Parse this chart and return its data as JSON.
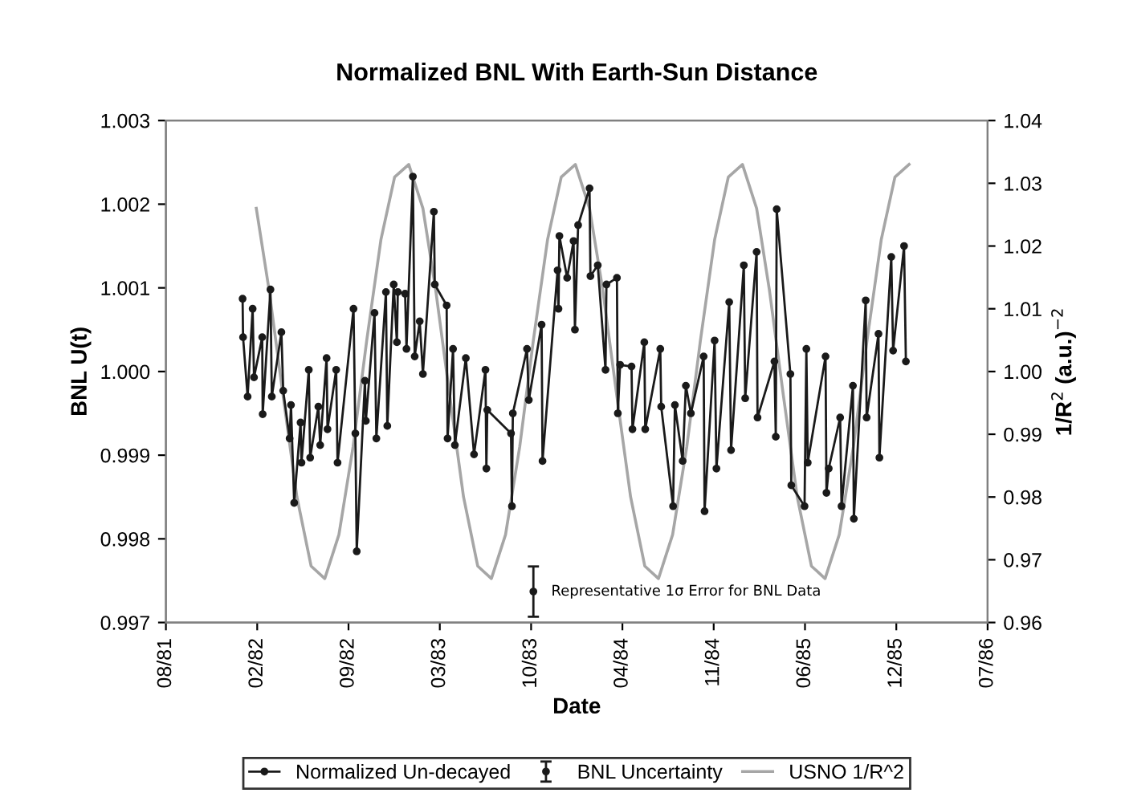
{
  "chart_data": {
    "type": "line",
    "title": "Normalized BNL With Earth-Sun Distance",
    "xlabel": "Date",
    "ylabel": "BNL U(t)",
    "y2label": "1/R$^{2}$ (a.u.)$^{−2}$",
    "xlim": [
      "1981-08-01",
      "1986-07-06"
    ],
    "xticks": [
      {
        "value": "1981-08-01",
        "label": "08/81"
      },
      {
        "value": "1982-02-17",
        "label": "02/82"
      },
      {
        "value": "1982-09-05",
        "label": "09/82"
      },
      {
        "value": "1983-03-24",
        "label": "03/83"
      },
      {
        "value": "1983-10-10",
        "label": "10/83"
      },
      {
        "value": "1984-04-27",
        "label": "04/84"
      },
      {
        "value": "1984-11-13",
        "label": "11/84"
      },
      {
        "value": "1985-06-01",
        "label": "06/85"
      },
      {
        "value": "1985-12-18",
        "label": "12/85"
      },
      {
        "value": "1986-07-06",
        "label": "07/86"
      }
    ],
    "ylim": [
      0.997,
      1.003
    ],
    "yticks": [
      0.997,
      0.998,
      0.999,
      {
        "value": 1.0,
        "label": "1.000"
      },
      1.001,
      1.002,
      1.003
    ],
    "y2lim": [
      0.96,
      1.04
    ],
    "y2ticks": [
      0.96,
      0.97,
      0.98,
      0.99,
      {
        "value": 1.0,
        "label": "1.00"
      },
      1.01,
      1.02,
      1.03,
      1.04
    ],
    "grid": false,
    "legend": "bottom",
    "annotations": [
      {
        "text": "Representative 1σ Error for BNL Data",
        "x": "1983-10-15",
        "y": 0.99737
      }
    ],
    "series": [
      {
        "name": "Normalized Un-decayed",
        "color": "#1a1a1a",
        "marker": "circle",
        "line_style": "solid",
        "x": [
          "1982-01-16",
          "1982-01-17",
          "1982-01-27",
          "1982-02-07",
          "1982-02-10",
          "1982-02-28",
          "1982-03-01",
          "1982-03-18",
          "1982-03-21",
          "1982-04-11",
          "1982-04-15",
          "1982-04-29",
          "1982-05-02",
          "1982-05-09",
          "1982-05-23",
          "1982-05-25",
          "1982-06-10",
          "1982-06-13",
          "1982-07-01",
          "1982-07-05",
          "1982-07-19",
          "1982-07-21",
          "1982-08-09",
          "1982-08-12",
          "1982-09-16",
          "1982-09-20",
          "1982-09-23",
          "1982-10-11",
          "1982-10-13",
          "1982-11-01",
          "1982-11-05",
          "1982-11-26",
          "1982-11-29",
          "1982-12-13",
          "1982-12-20",
          "1982-12-22",
          "1983-01-07",
          "1983-01-10",
          "1983-01-24",
          "1983-01-28",
          "1983-02-08",
          "1983-02-15",
          "1983-03-11",
          "1983-03-13",
          "1983-04-08",
          "1983-04-10",
          "1983-04-22",
          "1983-04-26",
          "1983-05-20",
          "1983-06-07",
          "1983-07-02",
          "1983-07-04",
          "1983-07-06",
          "1983-08-27",
          "1983-08-29",
          "1983-08-31",
          "1983-10-01",
          "1983-10-05",
          "1983-11-02",
          "1983-11-04",
          "1983-12-07",
          "1983-12-09",
          "1983-12-11",
          "1983-12-28",
          "1984-01-11",
          "1984-01-14",
          "1984-01-21",
          "1984-02-15",
          "1984-02-17",
          "1984-03-04",
          "1984-03-21",
          "1984-03-23",
          "1984-04-15",
          "1984-04-17",
          "1984-04-22",
          "1984-05-17",
          "1984-05-19",
          "1984-06-14",
          "1984-06-16",
          "1984-07-19",
          "1984-07-21",
          "1984-08-16",
          "1984-08-20",
          "1984-09-06",
          "1984-09-13",
          "1984-09-24",
          "1984-10-22",
          "1984-10-24",
          "1984-11-15",
          "1984-11-19",
          "1984-12-17",
          "1984-12-21",
          "1985-01-18",
          "1985-01-21",
          "1985-02-15",
          "1985-02-17",
          "1985-03-26",
          "1985-03-29",
          "1985-03-31",
          "1985-04-30",
          "1985-05-02",
          "1985-05-31",
          "1985-06-04",
          "1985-06-07",
          "1985-07-16",
          "1985-07-18",
          "1985-07-23",
          "1985-08-17",
          "1985-08-20",
          "1985-09-14",
          "1985-09-16",
          "1985-10-12",
          "1985-10-14",
          "1985-11-09",
          "1985-11-11",
          "1985-12-07",
          "1985-12-11",
          "1986-01-04",
          "1986-01-08"
        ],
        "values": [
          1.00087,
          1.00041,
          0.9997,
          1.00075,
          0.99993,
          1.00041,
          0.99949,
          1.00098,
          0.9997,
          1.00047,
          0.99977,
          0.9992,
          0.9996,
          0.99843,
          0.99939,
          0.99891,
          1.00002,
          0.99897,
          0.99958,
          0.99912,
          1.00016,
          0.99931,
          1.00002,
          0.99891,
          1.00075,
          0.99926,
          0.99785,
          0.99989,
          0.99941,
          1.0007,
          0.9992,
          1.00095,
          0.99935,
          1.00104,
          1.00035,
          1.00095,
          1.00093,
          1.00027,
          1.00233,
          1.00018,
          1.0006,
          0.99997,
          1.00191,
          1.00104,
          1.00079,
          0.9992,
          1.00027,
          0.99912,
          1.00016,
          0.99901,
          1.00002,
          0.99884,
          0.99954,
          0.99926,
          0.99839,
          0.9995,
          1.00027,
          0.99966,
          1.00056,
          0.99893,
          1.00121,
          1.00075,
          1.00162,
          1.00112,
          1.00156,
          1.0005,
          1.00175,
          1.00219,
          1.00114,
          1.00127,
          1.00002,
          1.00104,
          1.00112,
          0.9995,
          1.00008,
          1.00006,
          0.99931,
          1.00035,
          0.99931,
          1.00027,
          0.99958,
          0.99839,
          0.9996,
          0.99893,
          0.99983,
          0.9995,
          1.00018,
          0.99833,
          1.00037,
          0.99884,
          1.00083,
          0.99906,
          1.00127,
          0.99968,
          1.00143,
          0.99945,
          1.00012,
          0.99922,
          1.00194,
          0.99997,
          0.99864,
          0.99839,
          1.00027,
          0.99891,
          1.00018,
          0.99855,
          0.99884,
          0.99945,
          0.99839,
          0.99983,
          0.99824,
          1.00085,
          0.99945,
          1.00045,
          0.99897,
          1.00137,
          1.00025,
          1.0015,
          1.00012
        ]
      },
      {
        "name": "BNL Uncertainty",
        "type": "scatter",
        "color": "#1a1a1a",
        "marker": "circle",
        "x": [
          "1983-10-15"
        ],
        "values": [
          0.99737
        ],
        "errors": [
          0.0003
        ]
      },
      {
        "name": "USNO 1/R^2",
        "color": "#a6a6a6",
        "axis": "y2",
        "marker": "none",
        "line_style": "solid",
        "x": [
          "1982-02-15",
          "1982-03-15",
          "1982-04-15",
          "1982-05-15",
          "1982-06-15",
          "1982-07-15",
          "1982-08-15",
          "1982-09-15",
          "1982-10-15",
          "1982-11-15",
          "1982-12-15",
          "1983-01-15",
          "1983-02-15",
          "1983-03-15",
          "1983-04-15",
          "1983-05-15",
          "1983-06-15",
          "1983-07-15",
          "1983-08-15",
          "1983-09-15",
          "1983-10-15",
          "1983-11-15",
          "1983-12-15",
          "1984-01-15",
          "1984-02-15",
          "1984-03-15",
          "1984-04-15",
          "1984-05-15",
          "1984-06-15",
          "1984-07-15",
          "1984-08-15",
          "1984-09-15",
          "1984-10-15",
          "1984-11-15",
          "1984-12-15",
          "1985-01-15",
          "1985-02-15",
          "1985-03-15",
          "1985-04-15",
          "1985-05-15",
          "1985-06-15",
          "1985-07-15",
          "1985-08-15",
          "1985-09-15",
          "1985-10-15",
          "1985-11-15",
          "1985-12-15",
          "1986-01-15"
        ],
        "values": [
          1.026,
          1.013,
          0.996,
          0.98,
          0.969,
          0.967,
          0.974,
          0.988,
          1.005,
          1.021,
          1.031,
          1.033,
          1.026,
          1.013,
          0.996,
          0.98,
          0.969,
          0.967,
          0.974,
          0.988,
          1.005,
          1.021,
          1.031,
          1.033,
          1.026,
          1.013,
          0.996,
          0.98,
          0.969,
          0.967,
          0.974,
          0.988,
          1.005,
          1.021,
          1.031,
          1.033,
          1.026,
          1.013,
          0.996,
          0.98,
          0.969,
          0.967,
          0.974,
          0.988,
          1.005,
          1.021,
          1.031,
          1.033
        ]
      }
    ]
  }
}
